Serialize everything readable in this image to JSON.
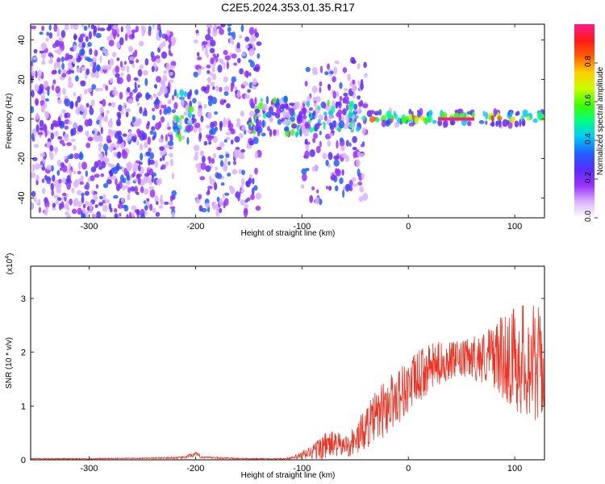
{
  "title": "C2E5.2024.353.01.35.R17",
  "colors": {
    "snr_line": "#ee3322",
    "background": "#ffffff",
    "axis": "#000000"
  },
  "chart_data": [
    {
      "type": "heatmap",
      "xlabel": "Height of straight line (km)",
      "ylabel": "Frequency (Hz)",
      "xlim": [
        -355,
        128
      ],
      "ylim": [
        -50,
        48
      ],
      "x_ticks": [
        "-300",
        "-200",
        "-100",
        "0",
        "100"
      ],
      "x_tick_values": [
        -300,
        -200,
        -100,
        0,
        100
      ],
      "y_ticks": [
        "40",
        "20",
        "0",
        "-20",
        "-40"
      ],
      "y_tick_values": [
        40,
        20,
        0,
        -20,
        -40
      ],
      "colorbar": {
        "label": "Normalized spectral amplitude",
        "range": [
          0,
          1
        ],
        "ticks": [
          "0.0",
          "0.2",
          "0.4",
          "0.6",
          "0.8"
        ],
        "tick_values": [
          0,
          0.2,
          0.4,
          0.6,
          0.8
        ],
        "colormap": [
          "#ffffff",
          "#d9b3ff",
          "#9b30ff",
          "#5a2dff",
          "#2060ff",
          "#00c8ff",
          "#00ff80",
          "#40ff00",
          "#c8ff00",
          "#ffd000",
          "#ff6000",
          "#ff1a1a",
          "#ff1a8c"
        ]
      },
      "regions": [
        {
          "x_range": [
            -355,
            -220
          ],
          "f_range": [
            -50,
            48
          ],
          "density": 0.55,
          "max_amp": 0.3
        },
        {
          "x_range": [
            -220,
            -200
          ],
          "f_range": [
            -12,
            14
          ],
          "density": 0.9,
          "max_amp": 0.6
        },
        {
          "x_range": [
            -200,
            -140
          ],
          "f_range": [
            -50,
            48
          ],
          "density": 0.45,
          "max_amp": 0.3
        },
        {
          "x_range": [
            -150,
            -100
          ],
          "f_range": [
            -8,
            10
          ],
          "density": 0.95,
          "max_amp": 0.6
        },
        {
          "x_range": [
            -100,
            -40
          ],
          "f_range": [
            -42,
            30
          ],
          "density": 0.35,
          "max_amp": 0.3
        },
        {
          "x_range": [
            -100,
            -40
          ],
          "f_range": [
            -6,
            8
          ],
          "density": 0.9,
          "max_amp": 0.55
        },
        {
          "x_range": [
            -40,
            128
          ],
          "f_range": [
            -3,
            4
          ],
          "density": 1.0,
          "max_amp": 0.95
        }
      ]
    },
    {
      "type": "line",
      "xlabel": "Height of straight line (km)",
      "ylabel": "SNR (10 * v/v)",
      "y_multiplier_label": "(x10",
      "y_multiplier_exp": "4",
      "y_multiplier_close": ")",
      "xlim": [
        -355,
        128
      ],
      "ylim": [
        0,
        3.6
      ],
      "x_ticks": [
        "-300",
        "-200",
        "-100",
        "0",
        "100"
      ],
      "x_tick_values": [
        -300,
        -200,
        -100,
        0,
        100
      ],
      "y_ticks": [
        "0",
        "1",
        "2",
        "3"
      ],
      "y_tick_values": [
        0,
        1,
        2,
        3
      ],
      "series": [
        {
          "x": [
            -355,
            -300,
            -250,
            -210,
            -205,
            -200,
            -195,
            -190,
            -150,
            -120,
            -110,
            -100,
            -90,
            -80,
            -70,
            -60,
            -50,
            -40,
            -30,
            -20,
            -10,
            0,
            10,
            20,
            30,
            40,
            50,
            60,
            70,
            80,
            90,
            100,
            110,
            120,
            128
          ],
          "mean": [
            0.02,
            0.02,
            0.03,
            0.04,
            0.08,
            0.1,
            0.06,
            0.04,
            0.02,
            0.02,
            0.03,
            0.08,
            0.15,
            0.25,
            0.3,
            0.25,
            0.35,
            0.6,
            0.8,
            1.0,
            1.2,
            1.35,
            1.55,
            1.7,
            1.8,
            1.85,
            1.85,
            1.9,
            1.9,
            1.95,
            1.9,
            1.9,
            1.85,
            1.8,
            1.75
          ],
          "noise": [
            0.01,
            0.01,
            0.01,
            0.02,
            0.04,
            0.05,
            0.03,
            0.02,
            0.01,
            0.01,
            0.02,
            0.08,
            0.15,
            0.25,
            0.25,
            0.2,
            0.3,
            0.4,
            0.5,
            0.55,
            0.55,
            0.5,
            0.5,
            0.45,
            0.4,
            0.35,
            0.35,
            0.4,
            0.5,
            0.6,
            0.8,
            1.0,
            1.1,
            1.1,
            1.0
          ]
        }
      ]
    }
  ]
}
